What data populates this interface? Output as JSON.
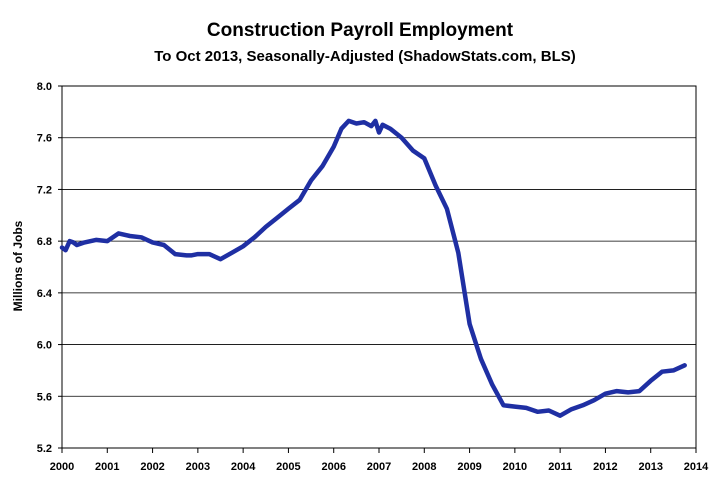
{
  "chart_data": {
    "type": "line",
    "title": "Construction Payroll Employment",
    "subtitle": "To Oct 2013, Seasonally-Adjusted (ShadowStats.com, BLS)",
    "ylabel": "Millions of Jobs",
    "xlabel": "",
    "ylim": [
      5.2,
      8.0
    ],
    "y_ticks": [
      "5.2",
      "5.6",
      "6.0",
      "6.4",
      "6.8",
      "7.2",
      "7.6",
      "8.0"
    ],
    "xlim": [
      2000,
      2014
    ],
    "x_ticks": [
      "2000",
      "2001",
      "2002",
      "2003",
      "2004",
      "2005",
      "2006",
      "2007",
      "2008",
      "2009",
      "2010",
      "2011",
      "2012",
      "2013",
      "2014"
    ],
    "grid": "horizontal",
    "line_color": "#1f2fa3",
    "series": [
      {
        "x": [
          2000.0,
          2000.08,
          2000.17,
          2000.25,
          2000.33,
          2000.5,
          2000.75,
          2001.0,
          2001.25,
          2001.5,
          2001.75,
          2002.0,
          2002.25,
          2002.5,
          2002.75,
          2002.85,
          2003.0,
          2003.25,
          2003.5,
          2003.75,
          2004.0,
          2004.25,
          2004.5,
          2004.75,
          2005.0,
          2005.25,
          2005.5,
          2005.75,
          2006.0,
          2006.17,
          2006.33,
          2006.5,
          2006.67,
          2006.83,
          2006.92,
          2007.0,
          2007.08,
          2007.25,
          2007.5,
          2007.75,
          2008.0,
          2008.25,
          2008.5,
          2008.75,
          2009.0,
          2009.25,
          2009.5,
          2009.75,
          2010.0,
          2010.25,
          2010.5,
          2010.75,
          2011.0,
          2011.25,
          2011.5,
          2011.75,
          2012.0,
          2012.25,
          2012.5,
          2012.75,
          2013.0,
          2013.25,
          2013.5,
          2013.75
        ],
        "y": [
          6.75,
          6.73,
          6.8,
          6.79,
          6.77,
          6.79,
          6.81,
          6.8,
          6.86,
          6.84,
          6.83,
          6.79,
          6.77,
          6.7,
          6.69,
          6.69,
          6.7,
          6.7,
          6.66,
          6.71,
          6.76,
          6.83,
          6.91,
          6.98,
          7.05,
          7.12,
          7.27,
          7.38,
          7.53,
          7.67,
          7.73,
          7.71,
          7.72,
          7.69,
          7.73,
          7.64,
          7.7,
          7.67,
          7.6,
          7.5,
          7.44,
          7.23,
          7.05,
          6.71,
          6.16,
          5.89,
          5.69,
          5.53,
          5.52,
          5.51,
          5.48,
          5.49,
          5.45,
          5.5,
          5.53,
          5.57,
          5.62,
          5.64,
          5.63,
          5.64,
          5.72,
          5.79,
          5.8,
          5.84
        ]
      }
    ]
  }
}
